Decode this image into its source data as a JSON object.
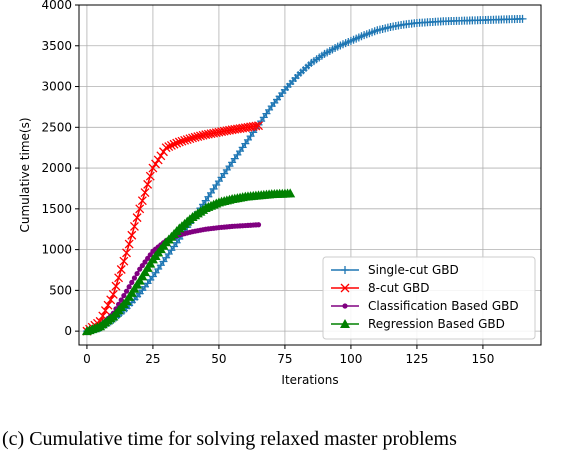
{
  "caption": "(c) Cumulative time for solving relaxed master problems",
  "colors": {
    "single_cut": "#1f77b4",
    "eight_cut": "#ff0000",
    "classification": "#800080",
    "regression": "#008000"
  },
  "chart_data": {
    "type": "line",
    "title": "",
    "xlabel": "Iterations",
    "ylabel": "Cumulative time(s)",
    "xlim": [
      -3,
      172
    ],
    "ylim": [
      -170,
      4000
    ],
    "xticks": [
      0,
      25,
      50,
      75,
      100,
      125,
      150
    ],
    "yticks": [
      0,
      500,
      1000,
      1500,
      2000,
      2500,
      3000,
      3500,
      4000
    ],
    "grid": true,
    "legend_position": "lower-right",
    "series": [
      {
        "name": "Single-cut GBD",
        "color": "#1f77b4",
        "marker": "plus",
        "x": [
          0,
          5,
          10,
          15,
          20,
          25,
          30,
          35,
          40,
          45,
          50,
          55,
          60,
          65,
          70,
          75,
          80,
          85,
          90,
          95,
          100,
          105,
          110,
          115,
          120,
          125,
          130,
          135,
          140,
          145,
          150,
          155,
          160,
          165
        ],
        "y": [
          0,
          40,
          140,
          280,
          460,
          670,
          900,
          1130,
          1370,
          1600,
          1840,
          2070,
          2300,
          2530,
          2760,
          2960,
          3140,
          3290,
          3400,
          3490,
          3560,
          3630,
          3690,
          3730,
          3760,
          3780,
          3790,
          3800,
          3805,
          3810,
          3815,
          3820,
          3825,
          3830
        ]
      },
      {
        "name": "8-cut GBD",
        "color": "#ff0000",
        "marker": "x",
        "x": [
          0,
          5,
          10,
          15,
          20,
          25,
          30,
          35,
          40,
          45,
          50,
          55,
          60,
          65
        ],
        "y": [
          0,
          120,
          450,
          960,
          1500,
          2000,
          2250,
          2320,
          2370,
          2410,
          2440,
          2470,
          2495,
          2520
        ]
      },
      {
        "name": "Classification Based GBD",
        "color": "#800080",
        "marker": "dot",
        "x": [
          0,
          5,
          10,
          15,
          20,
          25,
          30,
          35,
          40,
          45,
          50,
          55,
          60,
          65
        ],
        "y": [
          0,
          60,
          220,
          490,
          760,
          980,
          1110,
          1180,
          1220,
          1250,
          1270,
          1285,
          1295,
          1305
        ]
      },
      {
        "name": "Regression Based GBD",
        "color": "#008000",
        "marker": "triangle",
        "x": [
          0,
          5,
          10,
          15,
          20,
          25,
          30,
          35,
          40,
          45,
          50,
          55,
          60,
          65,
          70,
          77
        ],
        "y": [
          0,
          60,
          180,
          370,
          620,
          880,
          1090,
          1260,
          1400,
          1510,
          1580,
          1620,
          1650,
          1665,
          1680,
          1690
        ]
      }
    ]
  }
}
